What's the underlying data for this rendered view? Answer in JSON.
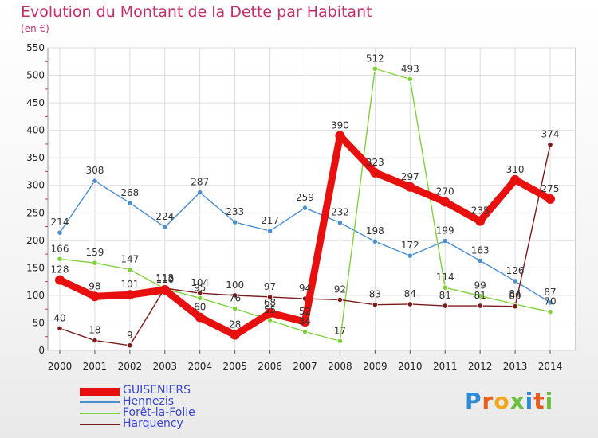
{
  "title": "Evolution du Montant de la Dette par Habitant",
  "subtitle": "(en €)",
  "brand": {
    "text": "Proxiti",
    "colors": [
      "#2e8bd8",
      "#e85d1a",
      "#f2a81d",
      "#6cbf3c",
      "#2e8bd8",
      "#e85d1a",
      "#6cbf3c"
    ]
  },
  "chart_data": {
    "type": "line",
    "title": "Evolution du Montant de la Dette par Habitant",
    "subtitle": "(en €)",
    "x": [
      "2000",
      "2001",
      "2002",
      "2003",
      "2004",
      "2005",
      "2006",
      "2007",
      "2008",
      "2009",
      "2010",
      "2011",
      "2012",
      "2013",
      "2014"
    ],
    "ylim": [
      0,
      550
    ],
    "yticks": [
      0,
      50,
      100,
      150,
      200,
      250,
      300,
      350,
      400,
      450,
      500,
      550
    ],
    "grid": true,
    "legend_position": "bottom-left",
    "series": [
      {
        "name": "GUISENIERS",
        "color": "#e80f0f",
        "thick": true,
        "values": [
          128,
          98,
          101,
          110,
          60,
          28,
          68,
          52,
          390,
          323,
          297,
          270,
          235,
          310,
          275
        ]
      },
      {
        "name": "Hennezis",
        "color": "#4a8fd0",
        "thick": false,
        "values": [
          214,
          308,
          268,
          224,
          287,
          233,
          217,
          259,
          232,
          198,
          172,
          199,
          163,
          126,
          87
        ]
      },
      {
        "name": "Forêt-la-Folie",
        "color": "#7fd13b",
        "thick": false,
        "values": [
          166,
          159,
          147,
          112,
          95,
          76,
          55,
          34,
          17,
          512,
          493,
          114,
          99,
          84,
          70
        ]
      },
      {
        "name": "Harquency",
        "color": "#7a1a1a",
        "thick": false,
        "values": [
          40,
          18,
          9,
          113,
          104,
          100,
          97,
          94,
          92,
          83,
          84,
          81,
          81,
          80,
          374
        ]
      }
    ]
  }
}
